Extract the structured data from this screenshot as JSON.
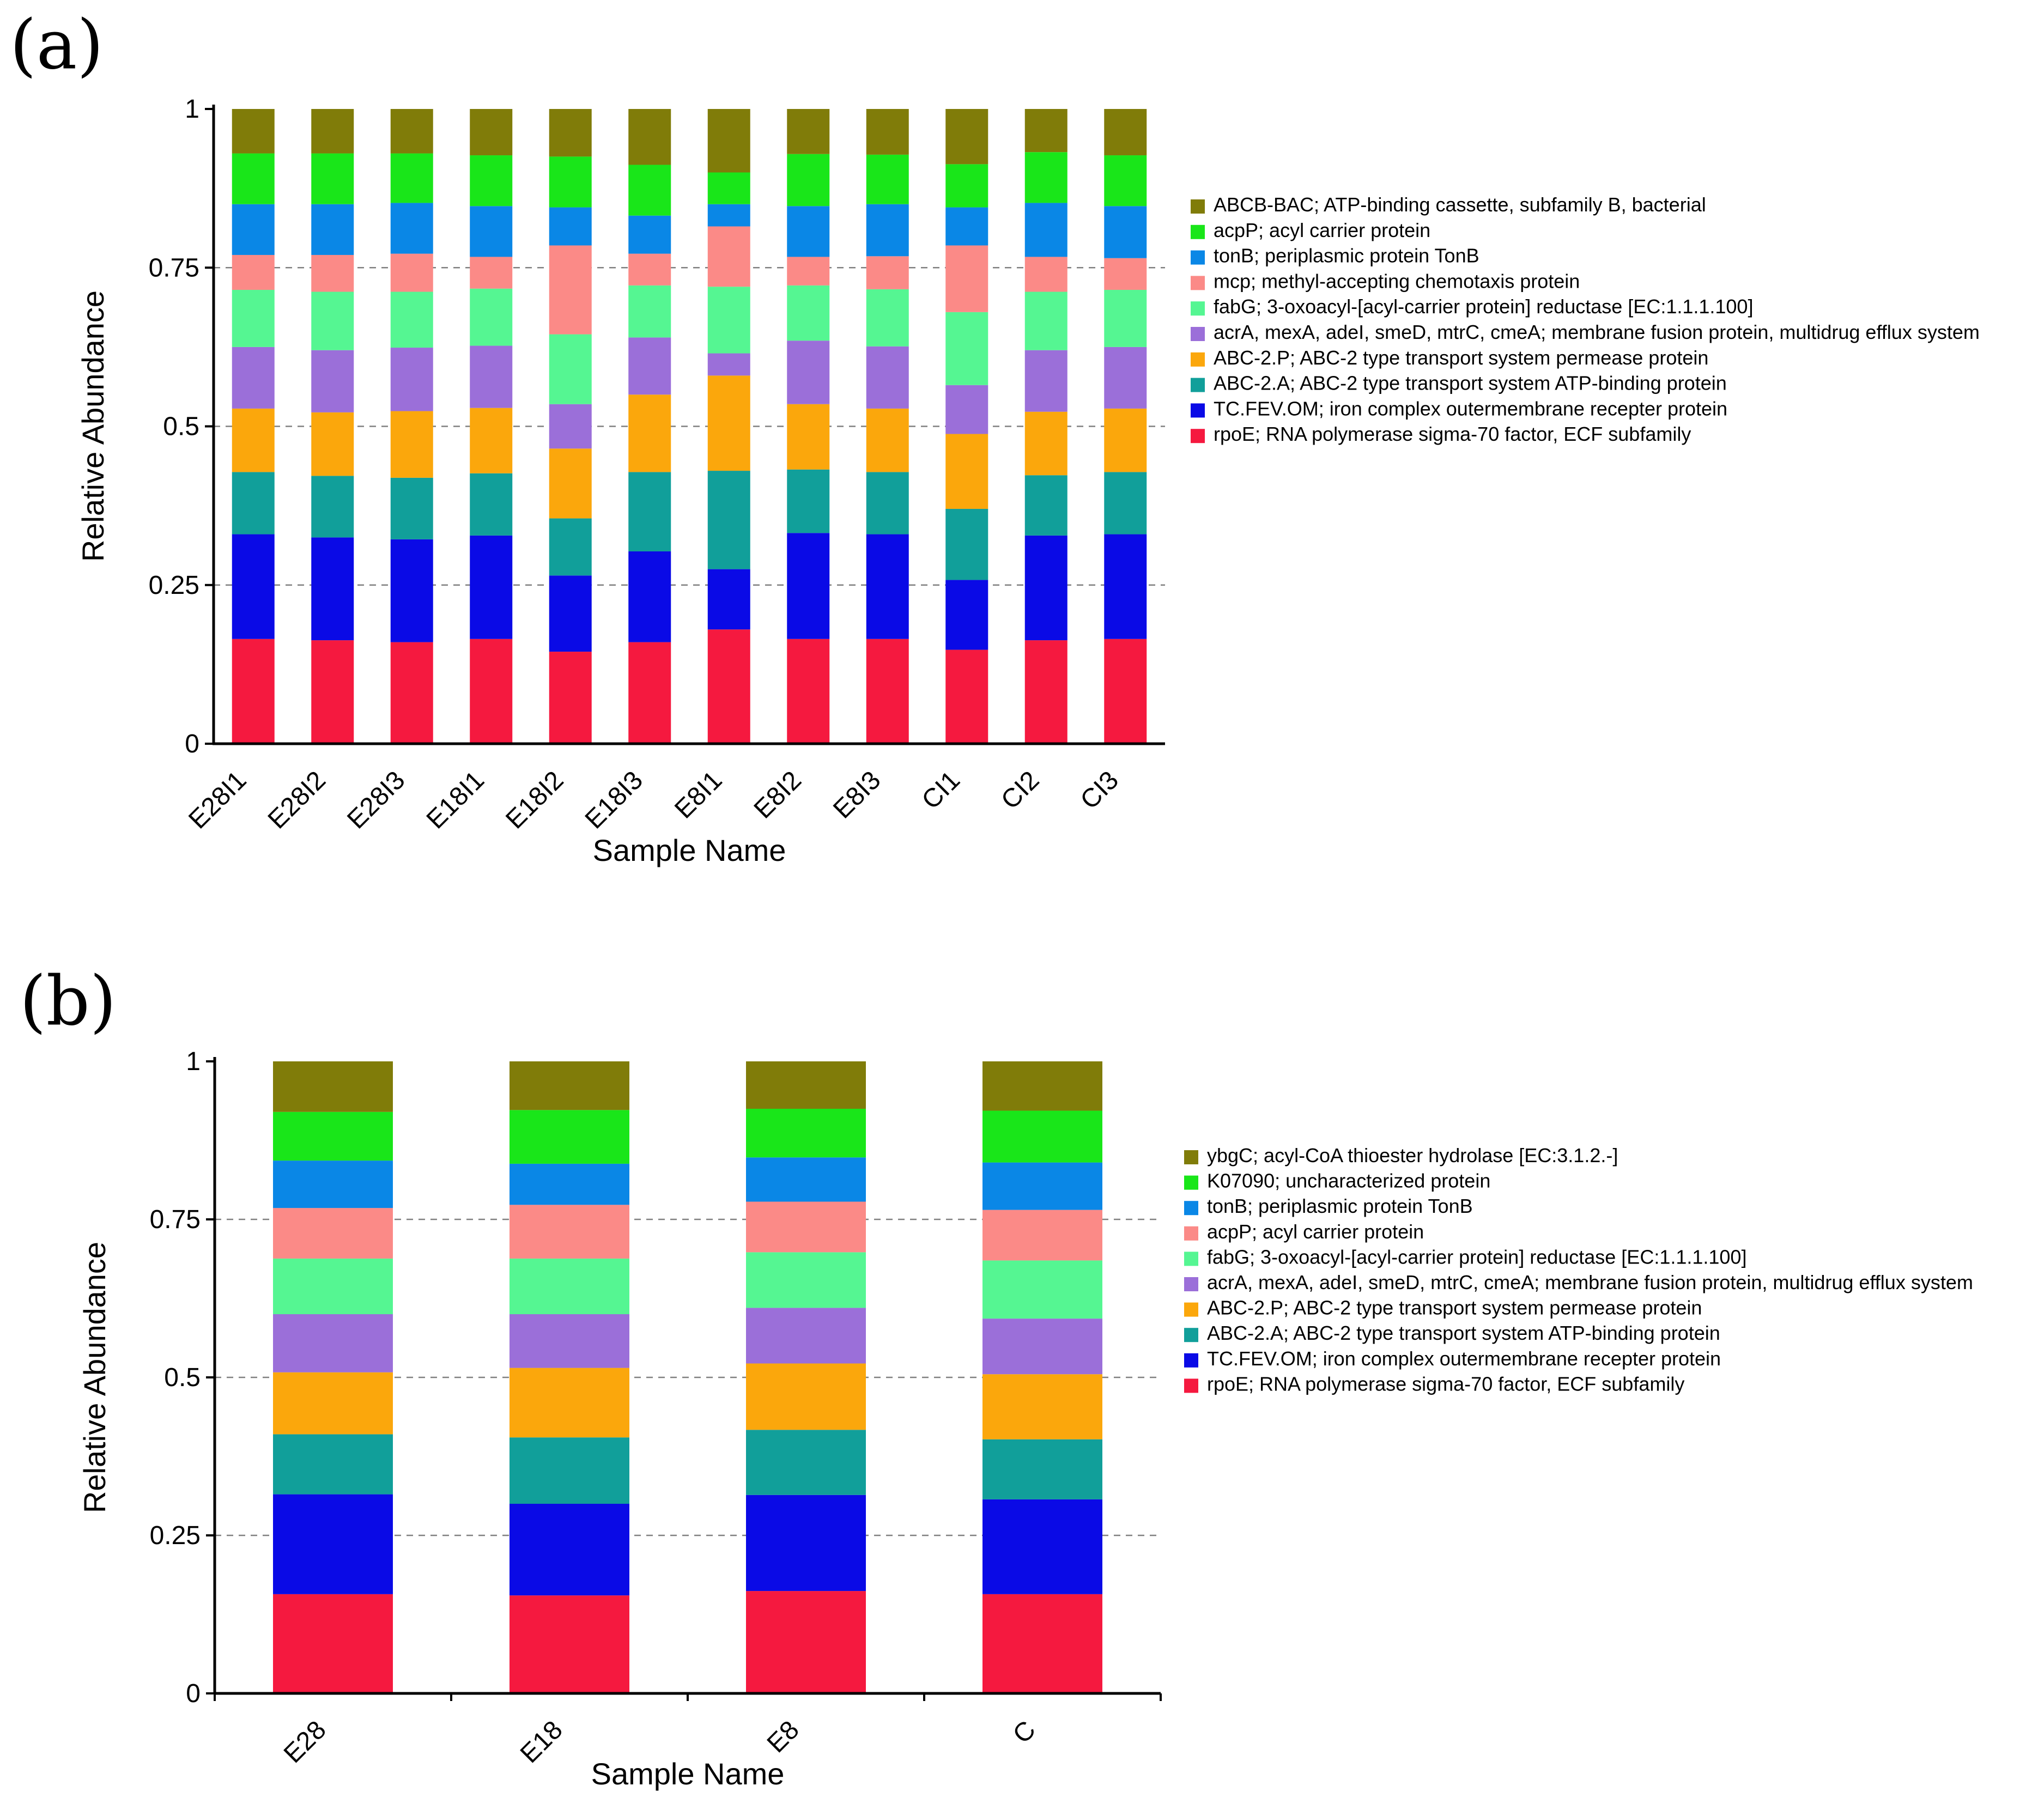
{
  "chart_data": [
    {
      "panel_label": "(a)",
      "type": "bar",
      "stacked": true,
      "title": "",
      "xlabel": "Sample Name",
      "ylabel": "Relative Abundance",
      "ylim": [
        0,
        1
      ],
      "yticks": [
        "0",
        "0.25",
        "0.5",
        "0.75",
        "1"
      ],
      "grid": true,
      "legend_position": "right",
      "categories": [
        "E28I1",
        "E28I2",
        "E28I3",
        "E18I1",
        "E18I2",
        "E18I3",
        "E8I1",
        "E8I2",
        "E8I3",
        "CI1",
        "CI2",
        "CI3"
      ],
      "series": [
        {
          "name": "rpoE; RNA polymerase sigma-70 factor, ECF subfamily",
          "color": "#f5193f",
          "values": [
            0.165,
            0.163,
            0.16,
            0.165,
            0.145,
            0.16,
            0.18,
            0.165,
            0.165,
            0.148,
            0.163,
            0.165
          ]
        },
        {
          "name": "TC.FEV.OM; iron complex outermembrane recepter protein",
          "color": "#0a0ae6",
          "values": [
            0.165,
            0.162,
            0.162,
            0.163,
            0.12,
            0.143,
            0.095,
            0.167,
            0.165,
            0.11,
            0.165,
            0.165
          ]
        },
        {
          "name": "ABC-2.A; ABC-2 type transport system ATP-binding protein",
          "color": "#119f9a",
          "values": [
            0.098,
            0.097,
            0.097,
            0.098,
            0.09,
            0.125,
            0.155,
            0.1,
            0.098,
            0.112,
            0.095,
            0.098
          ]
        },
        {
          "name": "ABC-2.P; ABC-2 type transport system permease protein",
          "color": "#fba70c",
          "values": [
            0.1,
            0.1,
            0.105,
            0.103,
            0.11,
            0.122,
            0.15,
            0.103,
            0.1,
            0.118,
            0.1,
            0.1
          ]
        },
        {
          "name": "acrA, mexA, adeI, smeD, mtrC, cmeA; membrane fusion protein, multidrug efflux system",
          "color": "#9b6fd9",
          "values": [
            0.097,
            0.098,
            0.1,
            0.098,
            0.07,
            0.09,
            0.035,
            0.1,
            0.098,
            0.077,
            0.097,
            0.097
          ]
        },
        {
          "name": "fabG; 3-oxoacyl-[acyl-carrier protein] reductase [EC:1.1.1.100]",
          "color": "#55f692",
          "values": [
            0.09,
            0.092,
            0.088,
            0.09,
            0.11,
            0.082,
            0.105,
            0.087,
            0.09,
            0.115,
            0.092,
            0.09
          ]
        },
        {
          "name": "mcp; methyl-accepting chemotaxis protein",
          "color": "#fb8a87",
          "values": [
            0.055,
            0.058,
            0.06,
            0.05,
            0.14,
            0.05,
            0.095,
            0.045,
            0.052,
            0.105,
            0.055,
            0.05
          ]
        },
        {
          "name": "tonB; periplasmic protein TonB",
          "color": "#0a87e6",
          "values": [
            0.08,
            0.08,
            0.08,
            0.08,
            0.06,
            0.06,
            0.035,
            0.08,
            0.082,
            0.06,
            0.085,
            0.082
          ]
        },
        {
          "name": "acpP; acyl carrier protein",
          "color": "#19e619",
          "values": [
            0.08,
            0.08,
            0.078,
            0.08,
            0.08,
            0.08,
            0.05,
            0.082,
            0.078,
            0.068,
            0.08,
            0.08
          ]
        },
        {
          "name": "ABCB-BAC; ATP-binding cassette, subfamily B, bacterial",
          "color": "#807c09",
          "values": [
            0.07,
            0.07,
            0.07,
            0.073,
            0.075,
            0.088,
            0.1,
            0.071,
            0.072,
            0.087,
            0.068,
            0.073
          ]
        }
      ]
    },
    {
      "panel_label": "(b)",
      "type": "bar",
      "stacked": true,
      "title": "",
      "xlabel": "Sample Name",
      "ylabel": "Relative Abundance",
      "ylim": [
        0,
        1
      ],
      "yticks": [
        "0",
        "0.25",
        "0.5",
        "0.75",
        "1"
      ],
      "grid": true,
      "legend_position": "right",
      "categories": [
        "E28",
        "E18",
        "E8",
        "C"
      ],
      "series": [
        {
          "name": "rpoE; RNA polymerase sigma-70 factor, ECF subfamily",
          "color": "#f5193f",
          "values": [
            0.157,
            0.155,
            0.162,
            0.157
          ]
        },
        {
          "name": "TC.FEV.OM; iron complex outermembrane recepter protein",
          "color": "#0a0ae6",
          "values": [
            0.158,
            0.145,
            0.152,
            0.15
          ]
        },
        {
          "name": "ABC-2.A; ABC-2 type transport system ATP-binding protein",
          "color": "#119f9a",
          "values": [
            0.095,
            0.105,
            0.103,
            0.095
          ]
        },
        {
          "name": "ABC-2.P; ABC-2 type transport system permease protein",
          "color": "#fba70c",
          "values": [
            0.098,
            0.11,
            0.105,
            0.103
          ]
        },
        {
          "name": "acrA, mexA, adeI, smeD, mtrC, cmeA; membrane fusion protein, multidrug efflux system",
          "color": "#9b6fd9",
          "values": [
            0.092,
            0.085,
            0.088,
            0.088
          ]
        },
        {
          "name": "fabG; 3-oxoacyl-[acyl-carrier protein] reductase [EC:1.1.1.100]",
          "color": "#55f692",
          "values": [
            0.088,
            0.088,
            0.088,
            0.092
          ]
        },
        {
          "name": "acpP; acyl carrier protein",
          "color": "#fb8a87",
          "values": [
            0.08,
            0.085,
            0.08,
            0.08
          ]
        },
        {
          "name": "tonB; periplasmic protein TonB",
          "color": "#0a87e6",
          "values": [
            0.075,
            0.065,
            0.07,
            0.075
          ]
        },
        {
          "name": "K07090; uncharacterized protein",
          "color": "#19e619",
          "values": [
            0.077,
            0.085,
            0.077,
            0.082
          ]
        },
        {
          "name": "ybgC; acyl-CoA thioester hydrolase [EC:3.1.2.-]",
          "color": "#807c09",
          "values": [
            0.08,
            0.077,
            0.075,
            0.078
          ]
        }
      ]
    }
  ]
}
